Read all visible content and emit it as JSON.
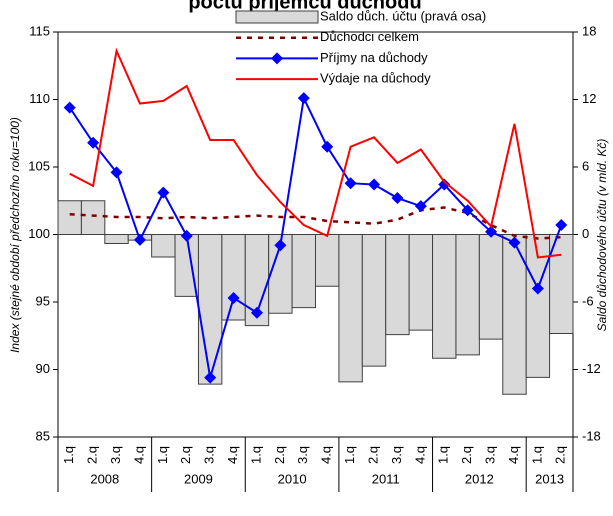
{
  "chart_data": {
    "type": "combo",
    "title": "počtu příjemců důchodů",
    "y_label": "Index (stejné období předchozího roku=100)",
    "y2_label": "Saldo důchodového účtu (v mld. Kč)",
    "categories": [
      "1.q",
      "2.q",
      "3.q",
      "4.q",
      "1.q",
      "2.q",
      "3.q",
      "4.q",
      "1.q",
      "2.q",
      "3.q",
      "4.q",
      "1.q",
      "2.q",
      "3.q",
      "4.q",
      "1.q",
      "2.q",
      "3.q",
      "4.q",
      "1.q",
      "2.q"
    ],
    "year_groups": [
      "2008",
      "2009",
      "2010",
      "2011",
      "2012",
      "2013"
    ],
    "ylim": [
      85,
      115
    ],
    "yticks": [
      85,
      90,
      95,
      100,
      105,
      110,
      115
    ],
    "y2lim": [
      -18,
      18
    ],
    "y2ticks": [
      -18,
      -12,
      -6,
      0,
      6,
      12,
      18
    ],
    "series": [
      {
        "name": "Saldo důch. účtu (pravá osa)",
        "kind": "bar",
        "axis": "y2",
        "color": "#d9d9d9",
        "values": [
          3.0,
          3.0,
          -0.8,
          -0.5,
          -2.0,
          -5.5,
          -13.3,
          -7.6,
          -8.1,
          -7.0,
          -6.5,
          -4.6,
          -13.1,
          -11.7,
          -8.9,
          -8.5,
          -11.0,
          -10.7,
          -9.3,
          -14.2,
          -12.7,
          -8.8
        ]
      },
      {
        "name": "Důchodci celkem",
        "kind": "dotted",
        "color": "#800000",
        "values": [
          101.5,
          101.4,
          101.3,
          101.3,
          101.2,
          101.3,
          101.2,
          101.3,
          101.4,
          101.3,
          101.3,
          101.0,
          100.9,
          100.8,
          101.1,
          101.8,
          102.0,
          101.6,
          100.7,
          99.9,
          99.7,
          99.8
        ]
      },
      {
        "name": "Příjmy na důchody",
        "kind": "marker-line",
        "color": "#0000ff",
        "values": [
          109.4,
          106.8,
          104.6,
          99.6,
          103.1,
          99.9,
          89.4,
          95.3,
          94.2,
          99.2,
          110.1,
          106.5,
          103.8,
          103.7,
          102.7,
          102.1,
          103.7,
          101.8,
          100.2,
          99.4,
          96.0,
          100.7
        ]
      },
      {
        "name": "Výdaje na důchody",
        "kind": "line",
        "color": "#ff0000",
        "values": [
          104.5,
          103.6,
          113.6,
          109.7,
          109.9,
          111.0,
          107.0,
          107.0,
          104.4,
          102.4,
          100.7,
          99.9,
          106.5,
          107.2,
          105.3,
          106.3,
          103.9,
          102.5,
          100.6,
          108.2,
          98.3,
          98.5
        ]
      }
    ]
  }
}
